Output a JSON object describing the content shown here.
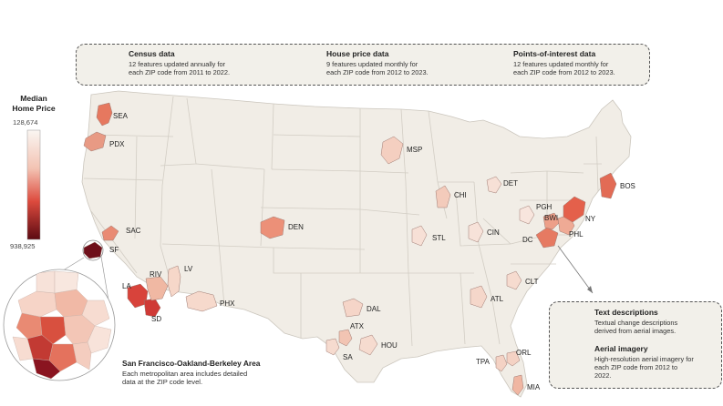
{
  "data_sources": {
    "census": {
      "title": "Census data",
      "desc_line1": "12 features updated annually for",
      "desc_line2": "each ZIP code from 2011 to 2022."
    },
    "house_price": {
      "title": "House price data",
      "desc_line1": "9 features updated monthly for",
      "desc_line2": "each ZIP code from 2012 to 2023."
    },
    "poi": {
      "title": "Points-of-interest data",
      "desc_line1": "12 features updated monthly for",
      "desc_line2": "each ZIP code from 2012 to 2023."
    }
  },
  "legend": {
    "title_line1": "Median",
    "title_line2": "Home Price",
    "max_label": "128,674",
    "min_label": "938,925",
    "color_low": "#faf6f2",
    "color_high": "#5c0a12"
  },
  "inset": {
    "title": "San Francisco-Oakland-Berkeley Area",
    "desc_line1": "Each metropolitan area includes detailed",
    "desc_line2": "data at the ZIP code level."
  },
  "extra_sources": {
    "text": {
      "title": "Text descriptions",
      "desc_line1": "Textual change descriptions",
      "desc_line2": "derived from aerial images."
    },
    "aerial": {
      "title": "Aerial imagery",
      "desc_line1": "High-resolution aerial imagery for",
      "desc_line2": "each ZIP code  from 2012 to",
      "desc_line3": "2022."
    }
  },
  "cities": [
    {
      "label": "SEA",
      "color": "#e6785f"
    },
    {
      "label": "PDX",
      "color": "#e89a84"
    },
    {
      "label": "SAC",
      "color": "#e98a73"
    },
    {
      "label": "SF",
      "color": "#6e0f1a"
    },
    {
      "label": "LA",
      "color": "#d8433b"
    },
    {
      "label": "SD",
      "color": "#cf3a36"
    },
    {
      "label": "RIV",
      "color": "#f0b8a3"
    },
    {
      "label": "LV",
      "color": "#f6d7c9"
    },
    {
      "label": "PHX",
      "color": "#f6d9cc"
    },
    {
      "label": "DEN",
      "color": "#ec9078"
    },
    {
      "label": "MSP",
      "color": "#f4cfc0"
    },
    {
      "label": "DAL",
      "color": "#f5d5c8"
    },
    {
      "label": "ATX",
      "color": "#f2c4b3"
    },
    {
      "label": "HOU",
      "color": "#f6dbcf"
    },
    {
      "label": "SA",
      "color": "#f6dbcf"
    },
    {
      "label": "CHI",
      "color": "#f3cbbb"
    },
    {
      "label": "DET",
      "color": "#f7e0d6"
    },
    {
      "label": "STL",
      "color": "#f7e0d6"
    },
    {
      "label": "CIN",
      "color": "#f7e2d9"
    },
    {
      "label": "PGH",
      "color": "#f8e5dd"
    },
    {
      "label": "ATL",
      "color": "#f5d7ca"
    },
    {
      "label": "CLT",
      "color": "#f6dbcf"
    },
    {
      "label": "TPA",
      "color": "#f4d2c4"
    },
    {
      "label": "ORL",
      "color": "#f4d2c4"
    },
    {
      "label": "MIA",
      "color": "#f0b6a2"
    },
    {
      "label": "DC",
      "color": "#e67a62"
    },
    {
      "label": "BWI",
      "color": "#ed9f89"
    },
    {
      "label": "PHL",
      "color": "#efaa95"
    },
    {
      "label": "NY",
      "color": "#e4604b"
    },
    {
      "label": "BOS",
      "color": "#e26b55"
    }
  ]
}
